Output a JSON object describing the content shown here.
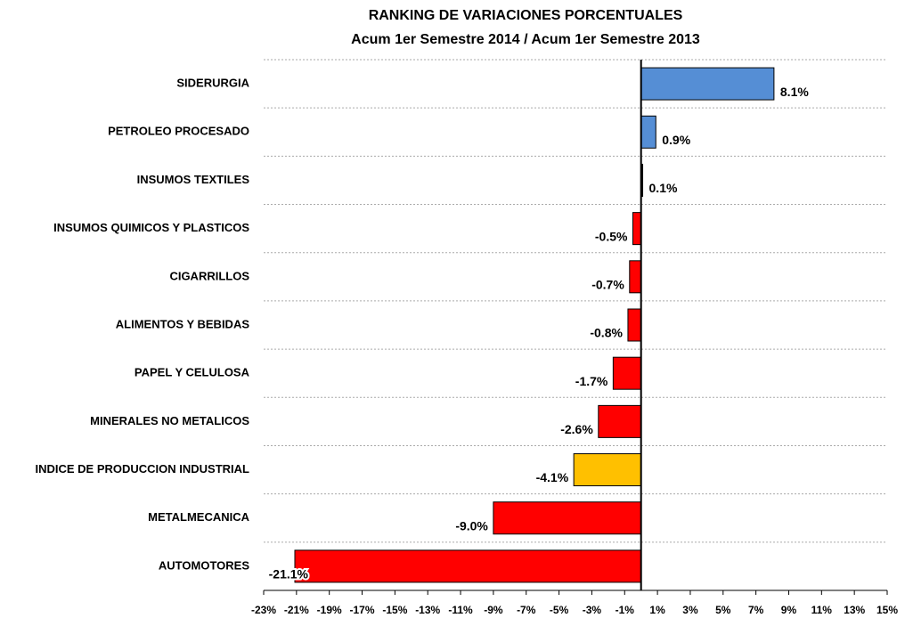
{
  "chart_data": {
    "type": "hbar",
    "title": "RANKING DE VARIACIONES PORCENTUALES",
    "subtitle": "Acum 1er Semestre 2014 / Acum 1er Semestre 2013",
    "categories": [
      "SIDERURGIA",
      "PETROLEO PROCESADO",
      "INSUMOS TEXTILES",
      "INSUMOS QUIMICOS Y PLASTICOS",
      "CIGARRILLOS",
      "ALIMENTOS Y BEBIDAS",
      "PAPEL Y CELULOSA",
      "MINERALES NO METALICOS",
      "INDICE DE PRODUCCION INDUSTRIAL",
      "METALMECANICA",
      "AUTOMOTORES"
    ],
    "values": [
      8.1,
      0.9,
      0.1,
      -0.5,
      -0.7,
      -0.8,
      -1.7,
      -2.6,
      -4.1,
      -9.0,
      -21.1
    ],
    "value_labels": [
      "8.1%",
      "0.9%",
      "0.1%",
      "-0.5%",
      "-0.7%",
      "-0.8%",
      "-1.7%",
      "-2.6%",
      "-4.1%",
      "-9.0%",
      "-21.1%"
    ],
    "colors": [
      "#558ed5",
      "#558ed5",
      "#000000",
      "#ff0000",
      "#ff0000",
      "#ff0000",
      "#ff0000",
      "#ff0000",
      "#ffc000",
      "#ff0000",
      "#ff0000"
    ],
    "xlim": [
      -23,
      15
    ],
    "xticks": [
      {
        "value": -23,
        "label": "-23%"
      },
      {
        "value": -21,
        "label": "-21%"
      },
      {
        "value": -19,
        "label": "-19%"
      },
      {
        "value": -17,
        "label": "-17%"
      },
      {
        "value": -15,
        "label": "-15%"
      },
      {
        "value": -13,
        "label": "-13%"
      },
      {
        "value": -11,
        "label": "-11%"
      },
      {
        "value": -9,
        "label": "-9%"
      },
      {
        "value": -7,
        "label": "-7%"
      },
      {
        "value": -5,
        "label": "-5%"
      },
      {
        "value": -3,
        "label": "-3%"
      },
      {
        "value": -1,
        "label": "-1%"
      },
      {
        "value": 1,
        "label": "1%"
      },
      {
        "value": 3,
        "label": "3%"
      },
      {
        "value": 5,
        "label": "5%"
      },
      {
        "value": 7,
        "label": "7%"
      },
      {
        "value": 9,
        "label": "9%"
      },
      {
        "value": 11,
        "label": "11%"
      },
      {
        "value": 13,
        "label": "13%"
      },
      {
        "value": 15,
        "label": "15%"
      }
    ]
  }
}
